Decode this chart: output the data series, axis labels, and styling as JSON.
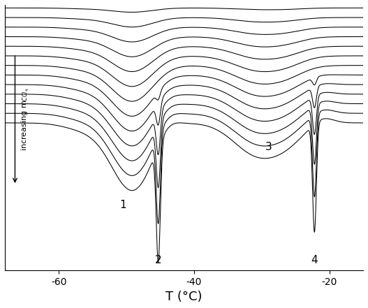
{
  "xlabel": "T (°C)",
  "xlim": [
    -68,
    -15
  ],
  "x_ticks": [
    -60,
    -40,
    -20
  ],
  "background_color": "#ffffff",
  "n_curves": 13,
  "curve_color": "#000000",
  "annotation_fontsize": 11,
  "axis_label_fontsize": 13,
  "label_1": "1",
  "label_2": "2",
  "label_3": "3",
  "label_4": "4"
}
